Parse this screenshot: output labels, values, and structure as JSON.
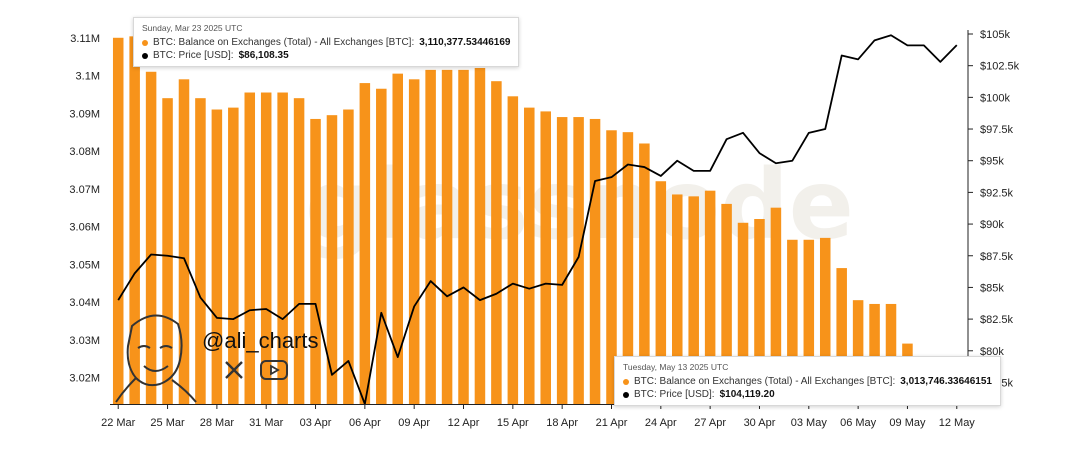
{
  "watermark": "glassnode",
  "brand": {
    "handle": "@ali_charts",
    "icons": [
      "x-logo-icon",
      "youtube-icon"
    ]
  },
  "tooltips": [
    {
      "title": "Sunday, Mar 23 2025 UTC",
      "balance_label": "BTC: Balance on Exchanges (Total) - All Exchanges [BTC]:",
      "balance_value": "3,110,377.53446169",
      "price_label": "BTC: Price [USD]:",
      "price_value": "$86,108.35"
    },
    {
      "title": "Tuesday, May 13 2025 UTC",
      "balance_label": "BTC: Balance on Exchanges (Total) - All Exchanges [BTC]:",
      "balance_value": "3,013,746.33646151",
      "price_label": "BTC: Price [USD]:",
      "price_value": "$104,119.20"
    }
  ],
  "colors": {
    "bar": "#f7931a",
    "line": "#000000",
    "watermark": "#e8e4dc"
  },
  "chart_data": {
    "type": "bar+line",
    "x_tick_labels": [
      "22 Mar",
      "25 Mar",
      "28 Mar",
      "31 Mar",
      "03 Apr",
      "06 Apr",
      "09 Apr",
      "12 Apr",
      "15 Apr",
      "18 Apr",
      "21 Apr",
      "24 Apr",
      "27 Apr",
      "30 Apr",
      "03 May",
      "06 May",
      "09 May",
      "12 May"
    ],
    "x_tick_step_days": 3,
    "left_axis": {
      "ticks": [
        "3.02M",
        "3.03M",
        "3.04M",
        "3.05M",
        "3.06M",
        "3.07M",
        "3.08M",
        "3.09M",
        "3.1M",
        "3.11M"
      ],
      "min": 3013000,
      "max": 3111000
    },
    "right_axis": {
      "ticks": [
        "$77.5k",
        "$80k",
        "$82.5k",
        "$85k",
        "$87.5k",
        "$90k",
        "$92.5k",
        "$95k",
        "$97.5k",
        "$100k",
        "$102.5k",
        "$105k"
      ],
      "min": 75800,
      "max": 105000
    },
    "series": [
      {
        "name": "BTC: Balance on Exchanges (Total) - All Exchanges [BTC]",
        "type": "bar",
        "axis": "left",
        "values": [
          3110000,
          3110377,
          3101000,
          3094000,
          3099000,
          3094000,
          3091000,
          3091500,
          3095500,
          3095500,
          3095500,
          3094000,
          3088500,
          3089500,
          3091000,
          3098000,
          3096500,
          3100500,
          3099000,
          3101500,
          3101500,
          3101500,
          3102000,
          3098500,
          3094500,
          3091500,
          3090500,
          3089000,
          3089000,
          3088500,
          3085500,
          3085000,
          3082000,
          3072000,
          3068500,
          3068000,
          3069500,
          3066000,
          3061000,
          3062000,
          3065000,
          3056500,
          3056500,
          3057000,
          3049000,
          3040500,
          3039500,
          3039500,
          3029000,
          3024500,
          3025000,
          3013746
        ]
      },
      {
        "name": "BTC: Price [USD]",
        "type": "line",
        "axis": "right",
        "values": [
          84000,
          86108,
          87600,
          87500,
          87300,
          84200,
          82600,
          82500,
          83200,
          83300,
          82500,
          83700,
          83700,
          78100,
          79200,
          75800,
          83000,
          79500,
          83500,
          85500,
          84300,
          85000,
          84000,
          84500,
          85300,
          84900,
          85300,
          85200,
          87400,
          93400,
          93700,
          94700,
          94500,
          93800,
          95000,
          94200,
          94200,
          96700,
          97200,
          95600,
          94800,
          95000,
          97200,
          97500,
          103300,
          103000,
          104500,
          104900,
          104100,
          104100,
          102800,
          104119
        ]
      }
    ]
  }
}
